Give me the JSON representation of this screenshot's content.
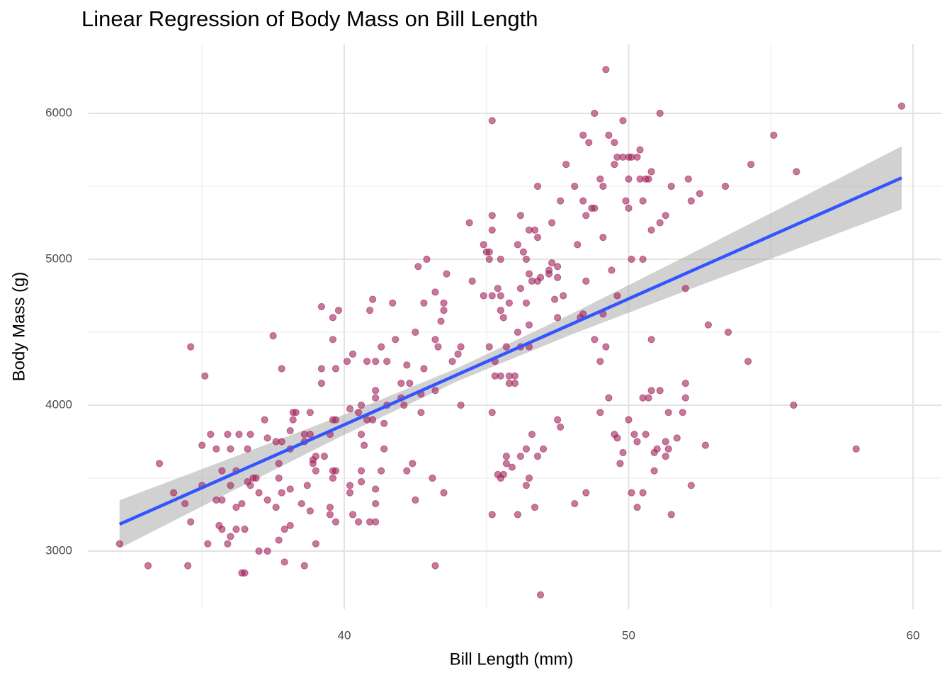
{
  "chart_data": {
    "type": "scatter",
    "title": "Linear Regression of Body Mass on Bill Length",
    "x_label": "Bill Length (mm)",
    "y_label": "Body Mass (g)",
    "xlim": [
      31,
      61
    ],
    "ylim": [
      2600,
      6475
    ],
    "xticks": [
      40,
      50,
      60
    ],
    "yticks": [
      3000,
      4000,
      5000,
      6000
    ],
    "x_minor": [
      35,
      45,
      55
    ],
    "y_minor": [
      3500,
      4500,
      5500
    ],
    "grid": true,
    "color": "#a0205a",
    "x": [
      32.1,
      33.1,
      33.5,
      34.0,
      34.4,
      34.5,
      34.6,
      34.6,
      35.0,
      35.0,
      35.1,
      35.2,
      35.3,
      35.5,
      35.5,
      35.6,
      35.7,
      35.7,
      35.7,
      35.9,
      35.9,
      36.0,
      36.0,
      36.0,
      36.2,
      36.2,
      36.2,
      36.3,
      36.4,
      36.4,
      36.5,
      36.5,
      36.6,
      36.6,
      36.7,
      36.7,
      36.8,
      36.9,
      37.0,
      37.0,
      37.2,
      37.3,
      37.3,
      37.3,
      37.5,
      37.6,
      37.6,
      37.7,
      37.7,
      37.7,
      37.8,
      37.8,
      37.8,
      37.9,
      37.9,
      38.1,
      38.1,
      38.1,
      38.1,
      38.2,
      38.2,
      38.3,
      38.5,
      38.6,
      38.6,
      38.6,
      38.7,
      38.8,
      38.8,
      38.8,
      38.9,
      38.9,
      39.0,
      39.0,
      39.0,
      39.2,
      39.2,
      39.2,
      39.3,
      39.5,
      39.5,
      39.5,
      39.6,
      39.6,
      39.6,
      39.6,
      39.6,
      39.7,
      39.7,
      39.7,
      39.7,
      39.8,
      40.1,
      40.2,
      40.2,
      40.2,
      40.3,
      40.3,
      40.5,
      40.5,
      40.6,
      40.6,
      40.6,
      40.6,
      40.7,
      40.8,
      40.8,
      40.9,
      40.9,
      41.0,
      41.0,
      41.1,
      41.1,
      41.1,
      41.1,
      41.1,
      41.1,
      41.3,
      41.3,
      41.4,
      41.4,
      41.5,
      41.5,
      41.7,
      41.8,
      42.0,
      42.0,
      42.1,
      42.2,
      42.2,
      42.3,
      42.4,
      42.5,
      42.5,
      42.6,
      42.7,
      42.7,
      42.8,
      42.8,
      42.9,
      43.1,
      43.2,
      43.2,
      43.2,
      43.2,
      43.3,
      43.4,
      43.5,
      43.5,
      43.5,
      43.6,
      43.8,
      44.0,
      44.1,
      44.1,
      44.4,
      44.5,
      44.9,
      44.9,
      45.0,
      45.1,
      45.1,
      45.1,
      45.2,
      45.2,
      45.2,
      45.2,
      45.2,
      45.2,
      45.3,
      45.3,
      45.4,
      45.4,
      45.5,
      45.5,
      45.5,
      45.5,
      45.5,
      45.6,
      45.6,
      45.7,
      45.7,
      45.7,
      45.8,
      45.8,
      45.8,
      45.9,
      46.0,
      46.0,
      46.1,
      46.1,
      46.1,
      46.2,
      46.2,
      46.2,
      46.2,
      46.3,
      46.4,
      46.4,
      46.4,
      46.4,
      46.5,
      46.5,
      46.5,
      46.5,
      46.5,
      46.6,
      46.6,
      46.7,
      46.7,
      46.8,
      46.8,
      46.8,
      46.8,
      46.9,
      46.9,
      47.0,
      47.2,
      47.2,
      47.3,
      47.3,
      47.4,
      47.5,
      47.5,
      47.5,
      47.5,
      47.6,
      47.6,
      47.7,
      47.8,
      48.1,
      48.1,
      48.2,
      48.3,
      48.4,
      48.4,
      48.4,
      48.5,
      48.5,
      48.5,
      48.6,
      48.7,
      48.8,
      48.8,
      48.8,
      49.0,
      49.0,
      49.0,
      49.1,
      49.1,
      49.1,
      49.2,
      49.2,
      49.3,
      49.3,
      49.4,
      49.5,
      49.5,
      49.5,
      49.6,
      49.6,
      49.6,
      49.7,
      49.8,
      49.8,
      49.8,
      49.9,
      50.0,
      50.0,
      50.0,
      50.0,
      50.1,
      50.1,
      50.1,
      50.2,
      50.3,
      50.3,
      50.3,
      50.4,
      50.4,
      50.5,
      50.5,
      50.5,
      50.5,
      50.6,
      50.6,
      50.7,
      50.7,
      50.8,
      50.8,
      50.8,
      50.8,
      50.9,
      50.9,
      51.0,
      51.1,
      51.1,
      51.1,
      51.3,
      51.3,
      51.3,
      51.4,
      51.4,
      51.5,
      51.5,
      51.7,
      51.9,
      52.0,
      52.0,
      52.0,
      52.1,
      52.2,
      52.2,
      52.5,
      52.7,
      52.8,
      53.4,
      53.5,
      54.2,
      54.3,
      55.1,
      55.8,
      55.9,
      58.0,
      59.6
    ],
    "values": [
      3050,
      2900,
      3600,
      3400,
      3325,
      2900,
      4400,
      3200,
      3725,
      3450,
      4200,
      3050,
      3800,
      3700,
      3350,
      3175,
      3550,
      3350,
      3150,
      3800,
      3050,
      3700,
      3450,
      3100,
      3550,
      3300,
      3150,
      3800,
      2850,
      3325,
      3150,
      2850,
      3700,
      3475,
      3800,
      3450,
      3500,
      3500,
      3400,
      3000,
      3900,
      3775,
      3350,
      3000,
      4475,
      3750,
      3300,
      3600,
      3500,
      3075,
      4250,
      3750,
      3400,
      3150,
      2925,
      3700,
      3825,
      3425,
      3175,
      3950,
      3900,
      3950,
      3325,
      3800,
      3750,
      2900,
      3450,
      3800,
      3275,
      3950,
      3625,
      3600,
      3650,
      3550,
      3050,
      4250,
      4150,
      4675,
      3650,
      3800,
      3300,
      3250,
      4600,
      4450,
      3900,
      3550,
      3500,
      3900,
      3550,
      4250,
      3200,
      4650,
      4300,
      3975,
      3450,
      3400,
      4350,
      3250,
      3950,
      3200,
      4000,
      3800,
      3550,
      3475,
      3725,
      4300,
      3900,
      4650,
      3200,
      4725,
      3900,
      4100,
      4050,
      4300,
      3425,
      3325,
      3200,
      4400,
      3550,
      3700,
      3875,
      4300,
      4000,
      4700,
      4450,
      4050,
      4150,
      4000,
      4275,
      3550,
      4150,
      3600,
      3350,
      4500,
      4950,
      3950,
      4075,
      4250,
      4700,
      5000,
      3500,
      4775,
      4450,
      4100,
      2900,
      4400,
      4575,
      4700,
      4650,
      3400,
      4900,
      4300,
      4350,
      4400,
      4000,
      5250,
      4850,
      5100,
      4750,
      5050,
      5050,
      4400,
      5000,
      5950,
      5300,
      5200,
      4750,
      3950,
      3250,
      4300,
      4200,
      4800,
      3525,
      5000,
      4750,
      4650,
      3500,
      4200,
      4600,
      3525,
      4400,
      3650,
      3600,
      4700,
      4200,
      4150,
      3575,
      4200,
      4150,
      5100,
      4500,
      3250,
      5300,
      4800,
      4400,
      3650,
      5050,
      5000,
      4700,
      3700,
      3450,
      4900,
      4550,
      4400,
      5200,
      3500,
      4850,
      3800,
      5200,
      3300,
      5150,
      5500,
      4850,
      3650,
      4875,
      2700,
      3700,
      4900,
      4925,
      4975,
      5250,
      4725,
      4950,
      4600,
      3900,
      4875,
      5400,
      3850,
      4750,
      5650,
      5500,
      3325,
      5100,
      4600,
      5850,
      5400,
      4625,
      5300,
      4850,
      3400,
      5800,
      5350,
      6000,
      5350,
      4450,
      5550,
      4300,
      3950,
      5500,
      5150,
      4625,
      6300,
      4400,
      5850,
      4050,
      4925,
      5800,
      5650,
      3800,
      5700,
      4750,
      3775,
      3600,
      5950,
      5700,
      3675,
      5400,
      5700,
      5550,
      5350,
      3900,
      5700,
      5000,
      3400,
      3800,
      5700,
      3750,
      3300,
      5750,
      5550,
      4050,
      5400,
      5000,
      3400,
      5550,
      3800,
      5550,
      4050,
      5600,
      5200,
      4100,
      4450,
      3675,
      3550,
      3700,
      4100,
      6000,
      5250,
      5300,
      3750,
      3650,
      3700,
      3950,
      3250,
      5500,
      3775,
      3950,
      4050,
      4150,
      4800,
      5550,
      5400,
      3450,
      5450,
      3725,
      4550,
      5500,
      4500,
      4300,
      5650,
      5850,
      4000,
      5600,
      3700,
      6050
    ],
    "fit": {
      "color": "#3355ff",
      "x": [
        32.1,
        59.6
      ],
      "values": [
        3184,
        5558
      ]
    },
    "band": {
      "color": "#999999",
      "x": [
        32.1,
        36,
        40,
        44,
        48,
        52,
        56,
        59.6
      ],
      "lower": [
        3019,
        3406,
        3797,
        4166,
        4485,
        4783,
        5077,
        5342
      ],
      "upper": [
        3349,
        3636,
        3935,
        4256,
        4627,
        5019,
        5415,
        5774
      ]
    }
  }
}
